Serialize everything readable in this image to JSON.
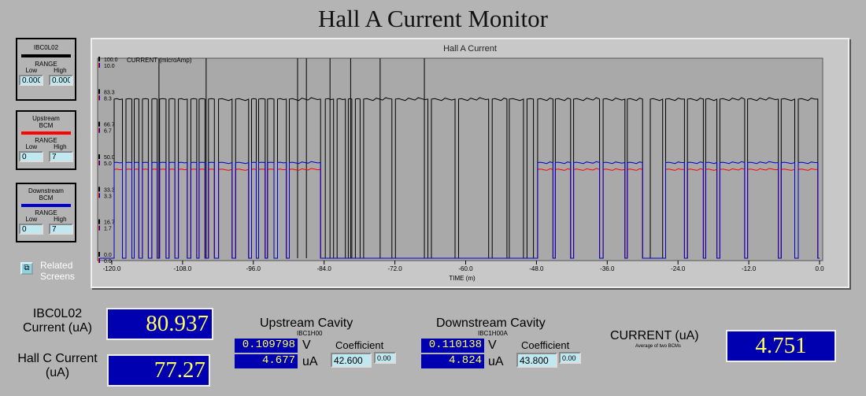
{
  "title": "Hall A Current Monitor",
  "legends": [
    {
      "name": "IBC0L02",
      "color": "#000000",
      "range_label": "RANGE",
      "low_label": "Low",
      "high_label": "High",
      "low": "0.000",
      "high": "0.000"
    },
    {
      "name": "Upstream BCM",
      "color": "#ff0000",
      "range_label": "RANGE",
      "low_label": "Low",
      "high_label": "High",
      "low": "0",
      "high": "7"
    },
    {
      "name": "Downstream BCM",
      "color": "#0000cc",
      "range_label": "RANGE",
      "low_label": "Low",
      "high_label": "High",
      "low": "0",
      "high": "7"
    }
  ],
  "related_screens_label": "Related Screens",
  "chart_data": {
    "type": "line",
    "title": "Hall A Current",
    "ylabel": "CURRENT (microAmp)",
    "xlabel": "TIME (m)",
    "xlim": [
      -122,
      0
    ],
    "x_ticks": [
      "-120.0",
      "-108.0",
      "-96.0",
      "-84.0",
      "-72.0",
      "-60.0",
      "-48.0",
      "-36.0",
      "-24.0",
      "-12.0",
      "0.0"
    ],
    "y_ticks_black": [
      "0.0",
      "16.7",
      "33.3",
      "50.0",
      "66.7",
      "83.3",
      "100.0"
    ],
    "y_ticks_color": [
      "0.0",
      "1.7",
      "3.3",
      "5.0",
      "6.7",
      "8.3",
      "10.0"
    ],
    "series": [
      {
        "name": "IBC0L02",
        "color": "#000000",
        "ylim": [
          0,
          100
        ],
        "on": [
          [
            -119.6,
            -118.2
          ],
          [
            -117.6,
            -116.6
          ],
          [
            -116.2,
            -115.4
          ],
          [
            -114.8,
            -113.8
          ],
          [
            -113.2,
            -112.3
          ],
          [
            -111.9,
            -110.8
          ],
          [
            -110.3,
            -109.3
          ],
          [
            -108.7,
            -107.2
          ],
          [
            -106.6,
            -105.6
          ],
          [
            -105.2,
            -104.2
          ],
          [
            -103.6,
            -102.6
          ],
          [
            -101.9,
            -99.6
          ],
          [
            -99.0,
            -96.8
          ],
          [
            -96.3,
            -95.5
          ],
          [
            -95.1,
            -94.0
          ],
          [
            -93.6,
            -92.5
          ],
          [
            -91.9,
            -90.4
          ],
          [
            -89.9,
            -84.6
          ],
          [
            -83.8,
            -82.4
          ],
          [
            -81.8,
            -80.4
          ],
          [
            -79.9,
            -79.3
          ],
          [
            -78.7,
            -77.9
          ],
          [
            -77.3,
            -72.5
          ],
          [
            -71.9,
            -66.4
          ],
          [
            -65.8,
            -61.8
          ],
          [
            -61.2,
            -56.1
          ],
          [
            -55.5,
            -53.0
          ],
          [
            -52.6,
            -50.2
          ],
          [
            -49.6,
            -48.5
          ],
          [
            -47.8,
            -45.2
          ],
          [
            -44.8,
            -42.2
          ],
          [
            -41.7,
            -37.3
          ],
          [
            -36.7,
            -33.0
          ],
          [
            -32.6,
            -30.0
          ],
          [
            -28.7,
            -26.6
          ],
          [
            -26.1,
            -22.9
          ],
          [
            -22.4,
            -19.7
          ],
          [
            -19.3,
            -17.4
          ],
          [
            -16.9,
            -12.7
          ],
          [
            -12.2,
            -7.0
          ],
          [
            -6.5,
            -4.2
          ],
          [
            -3.6,
            -0.3
          ]
        ],
        "level": 81.5,
        "spikes": [
          -112.0,
          -104.0,
          -88.5,
          -87.0,
          -83.0,
          -79.5,
          -74.5,
          -67.0
        ]
      },
      {
        "name": "Upstream BCM",
        "color": "#ff0000",
        "ylim": [
          0,
          10
        ],
        "on": [
          [
            -119.6,
            -118.2
          ],
          [
            -117.6,
            -116.6
          ],
          [
            -116.2,
            -115.4
          ],
          [
            -114.8,
            -113.8
          ],
          [
            -113.2,
            -112.3
          ],
          [
            -111.9,
            -110.8
          ],
          [
            -110.3,
            -109.3
          ],
          [
            -108.7,
            -107.2
          ],
          [
            -106.6,
            -105.6
          ],
          [
            -105.2,
            -104.2
          ],
          [
            -103.6,
            -102.6
          ],
          [
            -101.9,
            -99.6
          ],
          [
            -99.0,
            -96.8
          ],
          [
            -96.3,
            -95.5
          ],
          [
            -95.1,
            -94.0
          ],
          [
            -93.6,
            -92.5
          ],
          [
            -91.9,
            -90.4
          ],
          [
            -89.9,
            -84.6
          ],
          [
            -47.8,
            -45.2
          ],
          [
            -44.8,
            -42.2
          ],
          [
            -41.7,
            -37.3
          ],
          [
            -36.7,
            -33.0
          ],
          [
            -32.6,
            -30.0
          ],
          [
            -26.1,
            -22.9
          ],
          [
            -22.4,
            -19.7
          ],
          [
            -19.3,
            -17.4
          ],
          [
            -16.9,
            -12.7
          ],
          [
            -12.2,
            -7.0
          ],
          [
            -6.5,
            -4.2
          ],
          [
            -3.6,
            -0.3
          ]
        ],
        "level": 4.55
      },
      {
        "name": "Downstream BCM",
        "color": "#0000cc",
        "ylim": [
          0,
          10
        ],
        "on": [
          [
            -119.6,
            -118.2
          ],
          [
            -117.6,
            -116.6
          ],
          [
            -116.2,
            -115.4
          ],
          [
            -114.8,
            -113.8
          ],
          [
            -113.2,
            -112.3
          ],
          [
            -111.9,
            -110.8
          ],
          [
            -110.3,
            -109.3
          ],
          [
            -108.7,
            -107.2
          ],
          [
            -106.6,
            -105.6
          ],
          [
            -105.2,
            -104.2
          ],
          [
            -103.6,
            -102.6
          ],
          [
            -101.9,
            -99.6
          ],
          [
            -99.0,
            -96.8
          ],
          [
            -96.3,
            -95.5
          ],
          [
            -95.1,
            -94.0
          ],
          [
            -93.6,
            -92.5
          ],
          [
            -91.9,
            -90.4
          ],
          [
            -89.9,
            -84.6
          ],
          [
            -47.8,
            -45.2
          ],
          [
            -44.8,
            -42.2
          ],
          [
            -41.7,
            -37.3
          ],
          [
            -36.7,
            -33.0
          ],
          [
            -32.6,
            -30.0
          ],
          [
            -26.1,
            -22.9
          ],
          [
            -22.4,
            -19.7
          ],
          [
            -19.3,
            -17.4
          ],
          [
            -16.9,
            -12.7
          ],
          [
            -12.2,
            -7.0
          ],
          [
            -6.5,
            -4.2
          ],
          [
            -3.6,
            -0.3
          ]
        ],
        "level": 4.9
      }
    ]
  },
  "ibc0l02": {
    "label": "IBC0L02 Current (uA)",
    "value": "80.937"
  },
  "hallc": {
    "label": "Hall C Current (uA)",
    "value": "77.27"
  },
  "upstream": {
    "title": "Upstream Cavity",
    "pv": "IBC1H00",
    "volts": "0.109798",
    "volts_unit": "V",
    "current": "4.677",
    "current_unit": "uA",
    "coef_label": "Coefficient",
    "coef": "42.600",
    "offset": "0.00"
  },
  "downstream": {
    "title": "Downstream Cavity",
    "pv": "IBC1H00A",
    "volts": "0.110138",
    "volts_unit": "V",
    "current": "4.824",
    "current_unit": "uA",
    "coef_label": "Coefficient",
    "coef": "43.800",
    "offset": "0.00"
  },
  "current": {
    "label": "CURRENT (uA)",
    "sublabel": "Average of two BCMs",
    "value": "4.751"
  }
}
